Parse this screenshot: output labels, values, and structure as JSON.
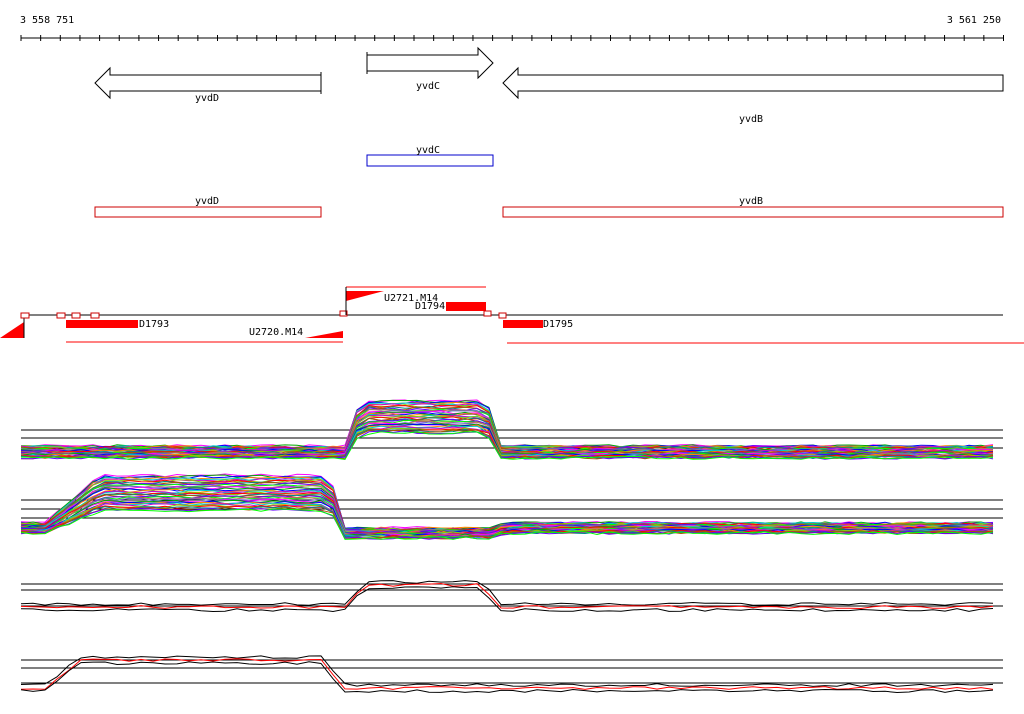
{
  "ruler": {
    "start": "3 558 751",
    "end": "3 561 250"
  },
  "genes": [
    {
      "label": "yvdD"
    },
    {
      "label": "yvdC"
    },
    {
      "label": "yvdB"
    }
  ],
  "blue_track": [
    {
      "label": "yvdC"
    }
  ],
  "red_track": [
    {
      "label": "yvdD"
    },
    {
      "label": "yvdB"
    }
  ],
  "features": [
    {
      "label": "U2721.M14"
    },
    {
      "label": "D1794"
    },
    {
      "label": "D1793"
    },
    {
      "label": "U2720.M14"
    },
    {
      "label": "D1795"
    }
  ]
}
